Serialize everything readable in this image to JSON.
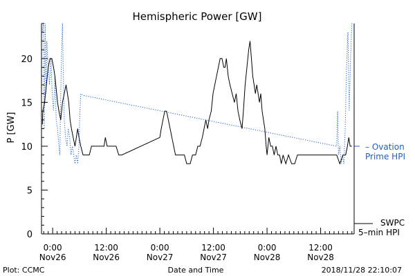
{
  "footer": {
    "left": "Plot: CCMC",
    "center": "Date and Time",
    "right": "2018/11/28 22:10:07"
  },
  "chart_data": {
    "type": "line",
    "title": "Hemispheric Power [GW]",
    "xlabel": "Date and Time",
    "ylabel": "P [GW]",
    "x_unit": "hours since 2018-11-26 00:00 UTC",
    "xlim": [
      -2.5,
      67.5
    ],
    "ylim": [
      0,
      24
    ],
    "y_ticks": [
      0,
      5,
      10,
      15,
      20
    ],
    "x_ticks": [
      {
        "hour": 0,
        "time": "0:00",
        "date": "Nov26"
      },
      {
        "hour": 12,
        "time": "12:00",
        "date": "Nov26"
      },
      {
        "hour": 24,
        "time": "0:00",
        "date": "Nov27"
      },
      {
        "hour": 36,
        "time": "12:00",
        "date": "Nov27"
      },
      {
        "hour": 48,
        "time": "0:00",
        "date": "Nov28"
      },
      {
        "hour": 60,
        "time": "12:00",
        "date": "Nov28"
      }
    ],
    "legend_position": "right",
    "colors": {
      "swpc": "#000000",
      "ovation": "#1a5fd0"
    },
    "series": [
      {
        "name": "SWPC 5-min HPI",
        "legend_lines": [
          "SWPC",
          "5–min HPI"
        ],
        "color": "#000000",
        "style": "solid",
        "points": [
          [
            -2.3,
            12.5
          ],
          [
            -2.2,
            14
          ],
          [
            -1.8,
            15
          ],
          [
            -1.4,
            17
          ],
          [
            -1,
            19
          ],
          [
            -0.6,
            20
          ],
          [
            -0.2,
            20
          ],
          [
            0.2,
            19
          ],
          [
            0.5,
            18
          ],
          [
            0.8,
            16.5
          ],
          [
            1.1,
            15
          ],
          [
            1.4,
            14
          ],
          [
            1.8,
            13
          ],
          [
            2.2,
            15
          ],
          [
            2.6,
            16
          ],
          [
            3,
            17
          ],
          [
            3.3,
            16
          ],
          [
            3.6,
            15
          ],
          [
            3.9,
            13
          ],
          [
            4.2,
            12
          ],
          [
            4.6,
            11
          ],
          [
            5,
            10
          ],
          [
            5.3,
            11
          ],
          [
            5.6,
            12
          ],
          [
            5.9,
            11
          ],
          [
            6.3,
            10
          ],
          [
            6.8,
            9
          ],
          [
            7.5,
            9
          ],
          [
            8.2,
            9
          ],
          [
            8.7,
            10
          ],
          [
            10,
            10
          ],
          [
            11.5,
            10
          ],
          [
            11.8,
            11
          ],
          [
            12.2,
            10
          ],
          [
            13.5,
            10
          ],
          [
            14.2,
            10
          ],
          [
            14.8,
            9
          ],
          [
            15.5,
            9
          ],
          [
            24,
            11
          ],
          [
            24.3,
            12
          ],
          [
            24.7,
            13
          ],
          [
            25.1,
            14
          ],
          [
            25.5,
            14
          ],
          [
            25.9,
            13
          ],
          [
            26.3,
            12
          ],
          [
            26.7,
            11
          ],
          [
            27.1,
            10
          ],
          [
            27.5,
            9
          ],
          [
            28.5,
            9
          ],
          [
            29.5,
            9
          ],
          [
            30,
            8
          ],
          [
            30.8,
            8
          ],
          [
            31.3,
            9
          ],
          [
            32,
            9
          ],
          [
            32.5,
            10
          ],
          [
            33,
            10
          ],
          [
            33.5,
            11
          ],
          [
            33.9,
            12
          ],
          [
            34.3,
            13
          ],
          [
            34.7,
            12
          ],
          [
            35,
            13
          ],
          [
            35.5,
            14
          ],
          [
            35.9,
            16
          ],
          [
            36.3,
            17
          ],
          [
            36.7,
            18
          ],
          [
            37.1,
            19
          ],
          [
            37.5,
            20
          ],
          [
            37.9,
            20
          ],
          [
            38.3,
            19
          ],
          [
            38.6,
            19
          ],
          [
            38.9,
            20
          ],
          [
            39.3,
            18
          ],
          [
            39.7,
            17
          ],
          [
            40.2,
            16
          ],
          [
            40.7,
            15
          ],
          [
            41.1,
            16
          ],
          [
            41.5,
            14
          ],
          [
            41.9,
            13
          ],
          [
            42.4,
            12
          ],
          [
            42.7,
            14
          ],
          [
            43.1,
            17
          ],
          [
            43.5,
            19
          ],
          [
            43.9,
            21
          ],
          [
            44.2,
            22
          ],
          [
            44.5,
            20
          ],
          [
            44.8,
            18
          ],
          [
            45.1,
            17
          ],
          [
            45.4,
            16
          ],
          [
            45.7,
            17
          ],
          [
            46,
            16
          ],
          [
            46.3,
            15
          ],
          [
            46.6,
            16
          ],
          [
            46.9,
            14
          ],
          [
            47.2,
            13
          ],
          [
            47.5,
            12
          ],
          [
            47.8,
            10
          ],
          [
            48,
            9
          ],
          [
            48.4,
            11
          ],
          [
            48.8,
            10
          ],
          [
            49.2,
            10
          ],
          [
            49.6,
            9
          ],
          [
            50,
            10
          ],
          [
            50.4,
            9
          ],
          [
            50.8,
            9
          ],
          [
            51.2,
            8
          ],
          [
            51.6,
            9
          ],
          [
            52.2,
            8
          ],
          [
            52.8,
            9
          ],
          [
            53.5,
            8
          ],
          [
            54.2,
            8
          ],
          [
            54.8,
            9
          ],
          [
            56,
            9
          ],
          [
            58,
            9
          ],
          [
            60,
            9
          ],
          [
            62,
            9
          ],
          [
            63.6,
            9
          ],
          [
            64.3,
            8
          ],
          [
            65,
            9
          ],
          [
            65.6,
            9
          ],
          [
            66,
            10
          ],
          [
            66.3,
            11
          ],
          [
            66.6,
            10
          ],
          [
            67,
            10
          ]
        ]
      },
      {
        "name": "Ovation Prime HPI",
        "legend_lines": [
          "– Ovation",
          "Prime HPI"
        ],
        "color": "#1a5fd0",
        "style": "dotted",
        "points": [
          [
            -2.3,
            23
          ],
          [
            -2.1,
            24
          ],
          [
            -1.9,
            12
          ],
          [
            -1.7,
            24
          ],
          [
            -1.5,
            16
          ],
          [
            -1.3,
            22
          ],
          [
            -1,
            19
          ],
          [
            -0.7,
            17
          ],
          [
            -0.4,
            20
          ],
          [
            -0.1,
            16
          ],
          [
            0.2,
            14
          ],
          [
            0.5,
            18
          ],
          [
            0.8,
            13
          ],
          [
            1.1,
            12
          ],
          [
            1.4,
            10
          ],
          [
            1.6,
            9
          ],
          [
            1.8,
            16
          ],
          [
            2,
            21
          ],
          [
            2.2,
            24
          ],
          [
            2.4,
            18
          ],
          [
            2.6,
            13
          ],
          [
            2.9,
            11
          ],
          [
            3.2,
            10
          ],
          [
            3.5,
            12
          ],
          [
            3.8,
            11
          ],
          [
            4.1,
            9
          ],
          [
            4.4,
            10
          ],
          [
            4.7,
            9
          ],
          [
            5,
            8
          ],
          [
            5.3,
            9
          ],
          [
            5.6,
            8
          ],
          [
            5.9,
            10
          ],
          [
            6.1,
            14
          ],
          [
            6.3,
            16
          ],
          [
            6.8,
            15.8
          ],
          [
            63.6,
            10
          ],
          [
            63.8,
            14
          ],
          [
            64,
            9
          ],
          [
            64.3,
            10
          ],
          [
            64.6,
            8
          ],
          [
            64.9,
            9
          ],
          [
            65.2,
            8
          ],
          [
            65.5,
            12
          ],
          [
            65.8,
            19
          ],
          [
            66.1,
            23
          ],
          [
            66.4,
            14
          ],
          [
            66.7,
            20
          ],
          [
            67,
            24
          ]
        ]
      }
    ]
  }
}
